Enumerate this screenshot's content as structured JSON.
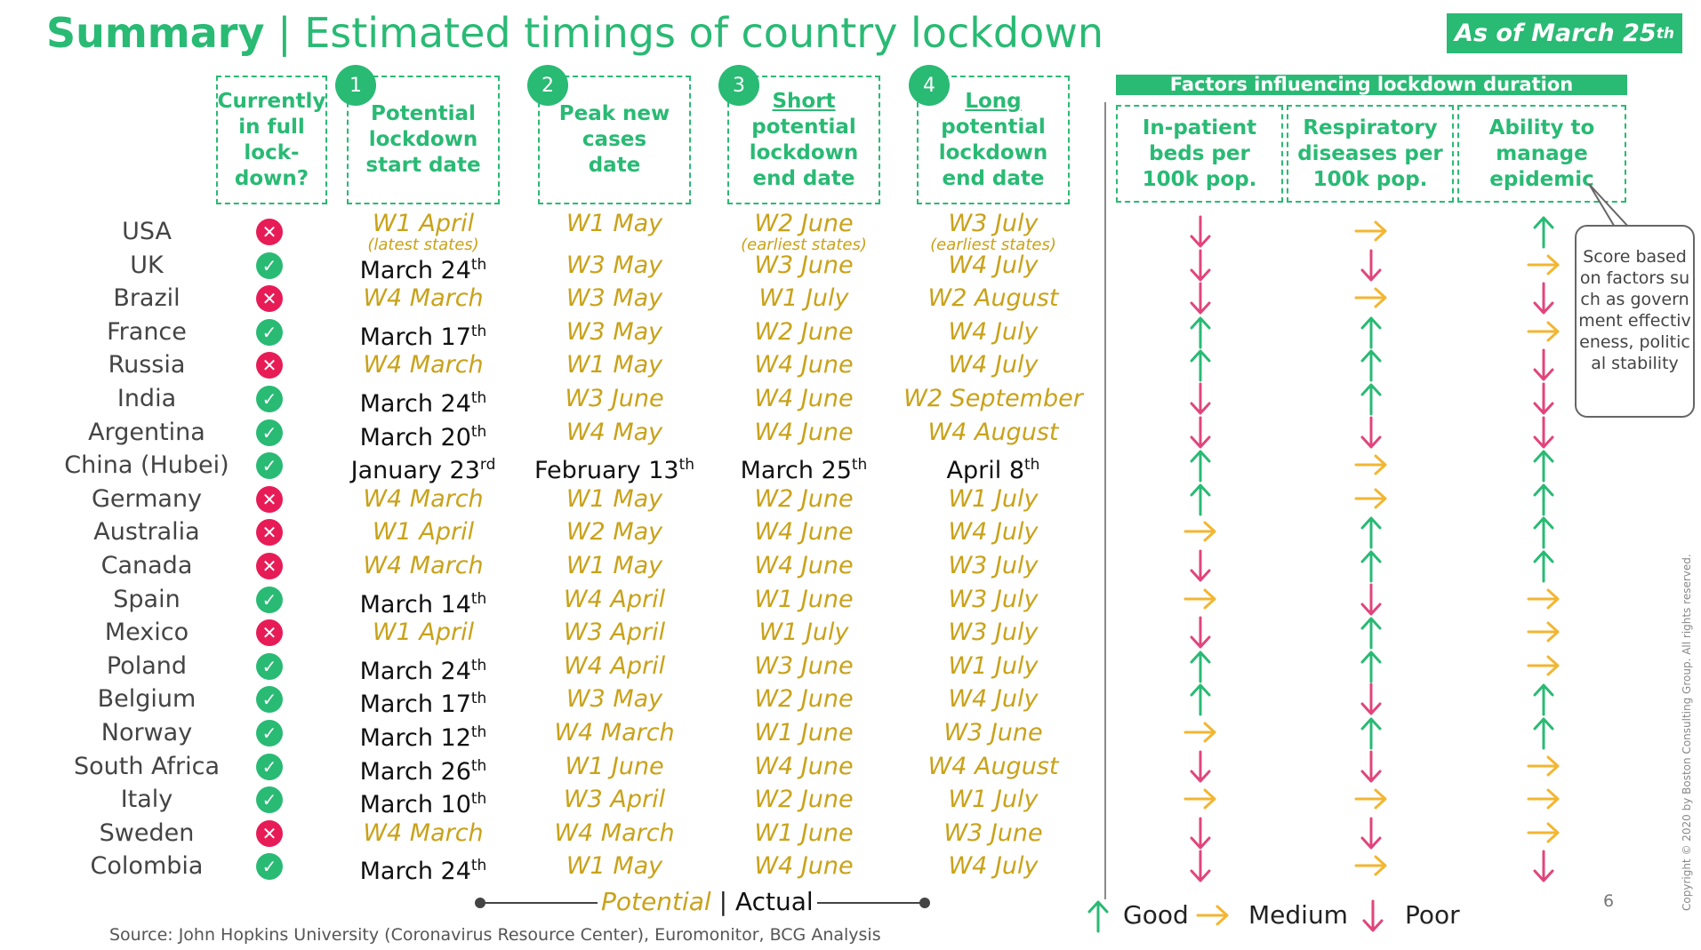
{
  "title": {
    "bold": "Summary",
    "sep": " | ",
    "rest": "Estimated timings of country lockdown"
  },
  "as_of": {
    "text": "As of March 25",
    "sup": "th"
  },
  "headers": {
    "status": "Currently in full lock-down?",
    "col1": {
      "num": "1",
      "label": "Potential lockdown start date"
    },
    "col2": {
      "num": "2",
      "label": "Peak new cases date"
    },
    "col3": {
      "num": "3",
      "emph": "Short",
      "label": "potential lockdown end date"
    },
    "col4": {
      "num": "4",
      "emph": "Long",
      "label": "potential lockdown end date"
    },
    "factors_title": "Factors influencing lockdown duration",
    "factor1": "In-patient beds per 100k pop.",
    "factor2": "Respiratory diseases per 100k pop.",
    "factor3": "Ability to manage epidemic"
  },
  "callout": "Score based on factors such as government effectiveness, political stability",
  "rows": [
    {
      "country": "USA",
      "full": false,
      "start": {
        "t": "W1 April",
        "s": "",
        "a": false
      },
      "peak": {
        "t": "W1 May",
        "s": "",
        "a": false
      },
      "short": {
        "t": "W2 June",
        "s": "",
        "a": false
      },
      "long": {
        "t": "W3 July",
        "s": "",
        "a": false
      },
      "f": [
        "poor",
        "medium",
        "good"
      ]
    },
    {
      "country": "UK",
      "full": true,
      "start": {
        "t": "March 24",
        "s": "th",
        "a": true
      },
      "peak": {
        "t": "W3 May",
        "s": "",
        "a": false
      },
      "short": {
        "t": "W3 June",
        "s": "",
        "a": false
      },
      "long": {
        "t": "W4 July",
        "s": "",
        "a": false
      },
      "f": [
        "poor",
        "poor",
        "medium"
      ]
    },
    {
      "country": "Brazil",
      "full": false,
      "start": {
        "t": "W4 March",
        "s": "",
        "a": false
      },
      "peak": {
        "t": "W3 May",
        "s": "",
        "a": false
      },
      "short": {
        "t": "W1 July",
        "s": "",
        "a": false
      },
      "long": {
        "t": "W2 August",
        "s": "",
        "a": false
      },
      "f": [
        "poor",
        "medium",
        "poor"
      ]
    },
    {
      "country": "France",
      "full": true,
      "start": {
        "t": "March 17",
        "s": "th",
        "a": true
      },
      "peak": {
        "t": "W3 May",
        "s": "",
        "a": false
      },
      "short": {
        "t": "W2 June",
        "s": "",
        "a": false
      },
      "long": {
        "t": "W4 July",
        "s": "",
        "a": false
      },
      "f": [
        "good",
        "good",
        "medium"
      ]
    },
    {
      "country": "Russia",
      "full": false,
      "start": {
        "t": "W4 March",
        "s": "",
        "a": false
      },
      "peak": {
        "t": "W1 May",
        "s": "",
        "a": false
      },
      "short": {
        "t": "W4 June",
        "s": "",
        "a": false
      },
      "long": {
        "t": "W4 July",
        "s": "",
        "a": false
      },
      "f": [
        "good",
        "good",
        "poor"
      ]
    },
    {
      "country": "India",
      "full": true,
      "start": {
        "t": "March 24",
        "s": "th",
        "a": true
      },
      "peak": {
        "t": "W3 June",
        "s": "",
        "a": false
      },
      "short": {
        "t": "W4 June",
        "s": "",
        "a": false
      },
      "long": {
        "t": "W2 September",
        "s": "",
        "a": false
      },
      "f": [
        "poor",
        "good",
        "poor"
      ]
    },
    {
      "country": "Argentina",
      "full": true,
      "start": {
        "t": "March 20",
        "s": "th",
        "a": true
      },
      "peak": {
        "t": "W4 May",
        "s": "",
        "a": false
      },
      "short": {
        "t": "W4 June",
        "s": "",
        "a": false
      },
      "long": {
        "t": "W4 August",
        "s": "",
        "a": false
      },
      "f": [
        "poor",
        "poor",
        "poor"
      ]
    },
    {
      "country": "China (Hubei)",
      "full": true,
      "start": {
        "t": "January 23",
        "s": "rd",
        "a": true
      },
      "peak": {
        "t": "February 13",
        "s": "th",
        "a": true
      },
      "short": {
        "t": "March 25",
        "s": "th",
        "a": true
      },
      "long": {
        "t": "April 8",
        "s": "th",
        "a": true
      },
      "f": [
        "good",
        "medium",
        "good"
      ]
    },
    {
      "country": "Germany",
      "full": false,
      "start": {
        "t": "W4 March",
        "s": "",
        "a": false
      },
      "peak": {
        "t": "W1 May",
        "s": "",
        "a": false
      },
      "short": {
        "t": "W2 June",
        "s": "",
        "a": false
      },
      "long": {
        "t": "W1 July",
        "s": "",
        "a": false
      },
      "f": [
        "good",
        "medium",
        "good"
      ]
    },
    {
      "country": "Australia",
      "full": false,
      "start": {
        "t": "W1 April",
        "s": "",
        "a": false
      },
      "peak": {
        "t": "W2 May",
        "s": "",
        "a": false
      },
      "short": {
        "t": "W4 June",
        "s": "",
        "a": false
      },
      "long": {
        "t": "W4 July",
        "s": "",
        "a": false
      },
      "f": [
        "medium",
        "good",
        "good"
      ]
    },
    {
      "country": "Canada",
      "full": false,
      "start": {
        "t": "W4 March",
        "s": "",
        "a": false
      },
      "peak": {
        "t": "W1 May",
        "s": "",
        "a": false
      },
      "short": {
        "t": "W4 June",
        "s": "",
        "a": false
      },
      "long": {
        "t": "W3 July",
        "s": "",
        "a": false
      },
      "f": [
        "poor",
        "good",
        "good"
      ]
    },
    {
      "country": "Spain",
      "full": true,
      "start": {
        "t": "March 14",
        "s": "th",
        "a": true
      },
      "peak": {
        "t": "W4 April",
        "s": "",
        "a": false
      },
      "short": {
        "t": "W1 June",
        "s": "",
        "a": false
      },
      "long": {
        "t": "W3 July",
        "s": "",
        "a": false
      },
      "f": [
        "medium",
        "poor",
        "medium"
      ]
    },
    {
      "country": "Mexico",
      "full": false,
      "start": {
        "t": "W1 April",
        "s": "",
        "a": false
      },
      "peak": {
        "t": "W3 April",
        "s": "",
        "a": false
      },
      "short": {
        "t": "W1 July",
        "s": "",
        "a": false
      },
      "long": {
        "t": "W3 July",
        "s": "",
        "a": false
      },
      "f": [
        "poor",
        "good",
        "medium"
      ]
    },
    {
      "country": "Poland",
      "full": true,
      "start": {
        "t": "March 24",
        "s": "th",
        "a": true
      },
      "peak": {
        "t": "W4 April",
        "s": "",
        "a": false
      },
      "short": {
        "t": "W3 June",
        "s": "",
        "a": false
      },
      "long": {
        "t": "W1 July",
        "s": "",
        "a": false
      },
      "f": [
        "good",
        "good",
        "medium"
      ]
    },
    {
      "country": "Belgium",
      "full": true,
      "start": {
        "t": "March 17",
        "s": "th",
        "a": true
      },
      "peak": {
        "t": "W3 May",
        "s": "",
        "a": false
      },
      "short": {
        "t": "W2 June",
        "s": "",
        "a": false
      },
      "long": {
        "t": "W4 July",
        "s": "",
        "a": false
      },
      "f": [
        "good",
        "poor",
        "good"
      ]
    },
    {
      "country": "Norway",
      "full": true,
      "start": {
        "t": "March 12",
        "s": "th",
        "a": true
      },
      "peak": {
        "t": "W4 March",
        "s": "",
        "a": false
      },
      "short": {
        "t": "W1 June",
        "s": "",
        "a": false
      },
      "long": {
        "t": "W3 June",
        "s": "",
        "a": false
      },
      "f": [
        "medium",
        "good",
        "good"
      ]
    },
    {
      "country": "South Africa",
      "full": true,
      "start": {
        "t": "March 26",
        "s": "th",
        "a": true
      },
      "peak": {
        "t": "W1 June",
        "s": "",
        "a": false
      },
      "short": {
        "t": "W4 June",
        "s": "",
        "a": false
      },
      "long": {
        "t": "W4 August",
        "s": "",
        "a": false
      },
      "f": [
        "poor",
        "poor",
        "medium"
      ]
    },
    {
      "country": "Italy",
      "full": true,
      "start": {
        "t": "March 10",
        "s": "th",
        "a": true
      },
      "peak": {
        "t": "W3 April",
        "s": "",
        "a": false
      },
      "short": {
        "t": "W2 June",
        "s": "",
        "a": false
      },
      "long": {
        "t": "W1 July",
        "s": "",
        "a": false
      },
      "f": [
        "medium",
        "medium",
        "medium"
      ]
    },
    {
      "country": "Sweden",
      "full": false,
      "start": {
        "t": "W4 March",
        "s": "",
        "a": false
      },
      "peak": {
        "t": "W4 March",
        "s": "",
        "a": false
      },
      "short": {
        "t": "W1 June",
        "s": "",
        "a": false
      },
      "long": {
        "t": "W3 June",
        "s": "",
        "a": false
      },
      "f": [
        "poor",
        "poor",
        "medium"
      ]
    },
    {
      "country": "Colombia",
      "full": true,
      "start": {
        "t": "March 24",
        "s": "th",
        "a": true
      },
      "peak": {
        "t": "W1 May",
        "s": "",
        "a": false
      },
      "short": {
        "t": "W4 June",
        "s": "",
        "a": false
      },
      "long": {
        "t": "W4 July",
        "s": "",
        "a": false
      },
      "f": [
        "poor",
        "medium",
        "poor"
      ]
    }
  ],
  "usa_notes": {
    "start": "(latest states)",
    "short": "(earliest states)",
    "long": "(earliest states)"
  },
  "legend": {
    "potential": "Potential",
    "sep": "|",
    "actual": "Actual"
  },
  "rating_legend": {
    "good": "Good",
    "medium": "Medium",
    "poor": "Poor"
  },
  "source": "Source: John Hopkins University (Coronavirus Resource Center), Euromonitor, BCG Analysis",
  "page_number": "6",
  "copyright": "Copyright © 2020 by Boston Consulting Group. All rights reserved.",
  "colors": {
    "green": "#29ba74",
    "red": "#e71c57",
    "gold": "#c9a21a",
    "orange": "#f2b632",
    "pink": "#e0457b"
  },
  "icons": {
    "yes": "check-icon",
    "no": "cross-icon",
    "good": "arrow-up-icon",
    "medium": "arrow-right-icon",
    "poor": "arrow-down-icon"
  }
}
